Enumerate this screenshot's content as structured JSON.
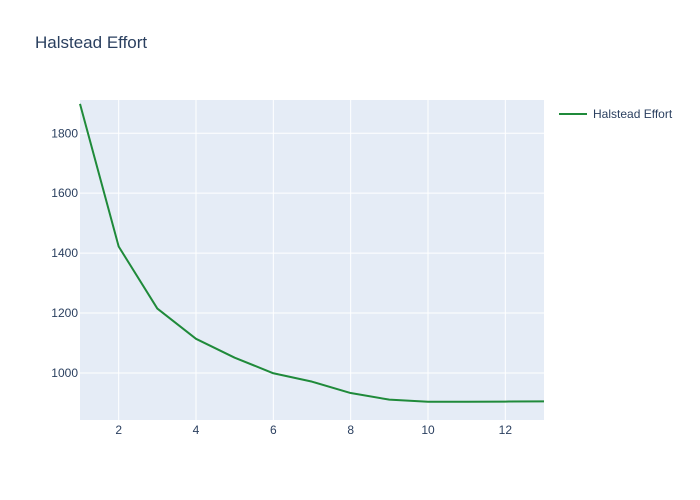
{
  "chart_data": {
    "type": "line",
    "title": "Halstead Effort",
    "xlabel": "",
    "ylabel": "",
    "x": [
      1,
      2,
      3,
      4,
      5,
      6,
      7,
      8,
      9,
      10,
      11,
      12,
      13
    ],
    "series": [
      {
        "name": "Halstead Effort",
        "color": "#1f8a3a",
        "values": [
          1898,
          1422,
          1215,
          1114,
          1051,
          999,
          971,
          933,
          911,
          904,
          904,
          904.5,
          905
        ]
      }
    ],
    "xlim": [
      1,
      13
    ],
    "ylim": [
      843,
      1911
    ],
    "xticks": [
      2,
      4,
      6,
      8,
      10,
      12
    ],
    "yticks": [
      1000,
      1200,
      1400,
      1600,
      1800
    ],
    "grid": true,
    "legend": "top-right",
    "colors": {
      "plot_bg": "#e5ecf6",
      "grid": "#ffffff",
      "text": "#2a3f5f"
    }
  }
}
